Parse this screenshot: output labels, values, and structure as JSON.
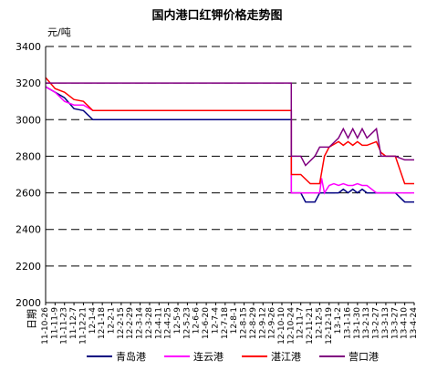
{
  "chart_data": {
    "type": "line",
    "title": "国内港口红钾价格走势图",
    "unit_label": "元/吨",
    "xlabel": "日期",
    "ylim": [
      2000,
      3400
    ],
    "y_ticks": [
      2000,
      2200,
      2400,
      2600,
      2800,
      3000,
      3200,
      3400
    ],
    "grid": "horizontal-dashed",
    "legend_position": "bottom",
    "colors": {
      "青岛港": "#000080",
      "连云港": "#ff00ff",
      "湛江港": "#ff0000",
      "营口港": "#800080",
      "grid": "#000000"
    },
    "x_tick_labels": [
      "11-10-26",
      "11-11-9",
      "11-11-23",
      "11-12-7",
      "11-12-21",
      "12-1-4",
      "12-1-18",
      "12-2-1",
      "12-2-15",
      "12-2-29",
      "12-3-14",
      "12-3-28",
      "12-4-11",
      "12-4-25",
      "12-5-9",
      "12-5-23",
      "12-6-6",
      "12-6-20",
      "12-7-4",
      "12-7-18",
      "12-8-1",
      "12-8-15",
      "12-8-29",
      "12-9-12",
      "12-9-26",
      "12-10-10",
      "12-10-24",
      "12-11-7",
      "12-11-21",
      "12-12-5",
      "12-12-19",
      "13-1-2",
      "13-1-16",
      "13-1-30",
      "13-2-13",
      "13-2-27",
      "13-3-13",
      "13-3-27",
      "13-4-10",
      "13-4-24"
    ],
    "x_range": [
      0,
      39
    ],
    "series": [
      {
        "name": "青岛港",
        "x": [
          0,
          1,
          2,
          3,
          4,
          5,
          6,
          26,
          26,
          27,
          27.5,
          28.5,
          29,
          30,
          31,
          31.5,
          32,
          32.5,
          33,
          33.5,
          34,
          35,
          36,
          37,
          38,
          39
        ],
        "y": [
          3180,
          3150,
          3120,
          3060,
          3050,
          3000,
          3000,
          3000,
          2600,
          2600,
          2550,
          2550,
          2600,
          2600,
          2600,
          2620,
          2600,
          2620,
          2600,
          2620,
          2600,
          2600,
          2600,
          2600,
          2550,
          2550
        ]
      },
      {
        "name": "连云港",
        "x": [
          0,
          1,
          2,
          3,
          4,
          5,
          6,
          26,
          26,
          27,
          28,
          29,
          29.2,
          29.5,
          30,
          30.5,
          31,
          31.5,
          32,
          32.5,
          33,
          33.5,
          34,
          35,
          36,
          37,
          38,
          39
        ],
        "y": [
          3180,
          3150,
          3100,
          3080,
          3080,
          3050,
          3050,
          3050,
          2600,
          2600,
          2600,
          2600,
          2680,
          2600,
          2640,
          2650,
          2640,
          2650,
          2640,
          2640,
          2650,
          2640,
          2640,
          2600,
          2600,
          2600,
          2600,
          2600
        ]
      },
      {
        "name": "湛江港",
        "x": [
          0,
          1,
          2,
          3,
          4,
          5,
          6,
          26,
          26,
          27,
          28,
          29,
          29.5,
          30,
          31,
          31.5,
          32,
          32.5,
          33,
          33.5,
          34,
          35,
          35.5,
          36,
          37,
          38,
          39
        ],
        "y": [
          3230,
          3170,
          3150,
          3110,
          3100,
          3050,
          3050,
          3050,
          2700,
          2700,
          2650,
          2650,
          2800,
          2850,
          2880,
          2860,
          2880,
          2860,
          2880,
          2860,
          2860,
          2880,
          2820,
          2800,
          2800,
          2650,
          2650
        ]
      },
      {
        "name": "营口港",
        "x": [
          0,
          1,
          2,
          3,
          4,
          5,
          6,
          26,
          26,
          27,
          27.5,
          28.5,
          29,
          30,
          31,
          31.5,
          32,
          32.5,
          33,
          33.5,
          34,
          35,
          35.5,
          36,
          37,
          38,
          39
        ],
        "y": [
          3200,
          3200,
          3200,
          3200,
          3200,
          3200,
          3200,
          3200,
          2800,
          2800,
          2750,
          2800,
          2850,
          2850,
          2900,
          2950,
          2900,
          2950,
          2900,
          2950,
          2900,
          2950,
          2800,
          2800,
          2800,
          2780,
          2780
        ]
      }
    ]
  }
}
